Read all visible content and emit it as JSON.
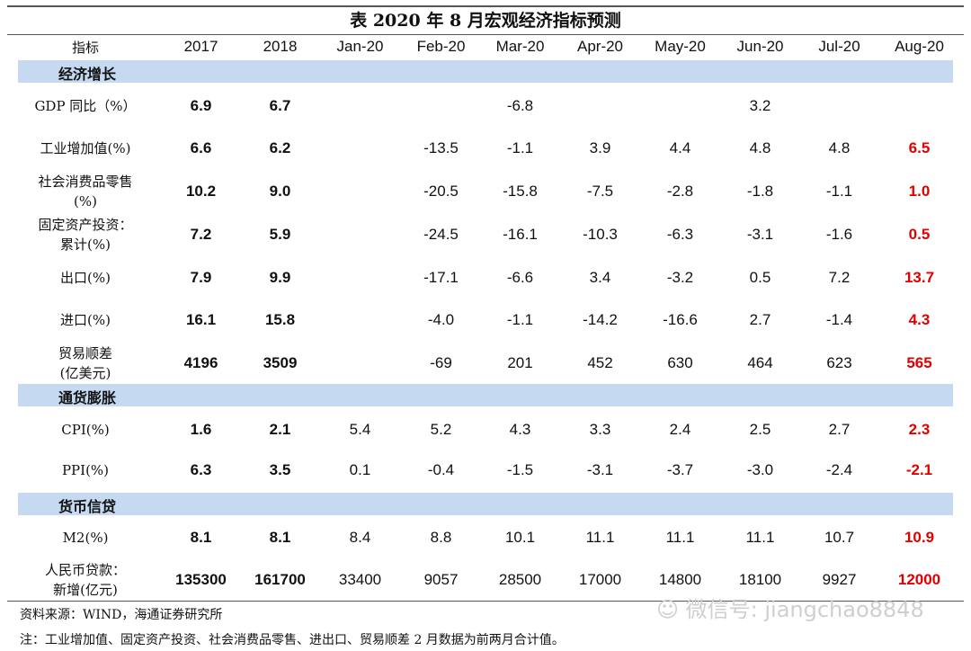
{
  "title": "表 2020 年 8 月宏观经济指标预测",
  "header": [
    "指标",
    "2017",
    "2018",
    "Jan-20",
    "Feb-20",
    "Mar-20",
    "Apr-20",
    "May-20",
    "Jun-20",
    "Jul-20",
    "Aug-20"
  ],
  "sections": [
    {
      "name": "经济增长",
      "rows": [
        {
          "label": "GDP 同比（%）",
          "values": [
            "6.9",
            "6.7",
            "",
            "",
            "-6.8",
            "",
            "",
            "3.2",
            "",
            ""
          ]
        },
        {
          "label": "工业增加值(%)",
          "values": [
            "6.6",
            "6.2",
            "",
            "-13.5",
            "-1.1",
            "3.9",
            "4.4",
            "4.8",
            "4.8",
            "6.5"
          ]
        },
        {
          "label": "社会消费品零售\n(%)",
          "values": [
            "10.2",
            "9.0",
            "",
            "-20.5",
            "-15.8",
            "-7.5",
            "-2.8",
            "-1.8",
            "-1.1",
            "1.0"
          ]
        },
        {
          "label": "固定资产投资：\n累计(%)",
          "values": [
            "7.2",
            "5.9",
            "",
            "-24.5",
            "-16.1",
            "-10.3",
            "-6.3",
            "-3.1",
            "-1.6",
            "0.5"
          ]
        },
        {
          "label": "出口(%)",
          "values": [
            "7.9",
            "9.9",
            "",
            "-17.1",
            "-6.6",
            "3.4",
            "-3.2",
            "0.5",
            "7.2",
            "13.7"
          ]
        },
        {
          "label": "进口(%)",
          "values": [
            "16.1",
            "15.8",
            "",
            "-4.0",
            "-1.1",
            "-14.2",
            "-16.6",
            "2.7",
            "-1.4",
            "4.3"
          ]
        },
        {
          "label": "贸易顺差\n(亿美元)",
          "values": [
            "4196",
            "3509",
            "",
            "-69",
            "201",
            "452",
            "630",
            "464",
            "623",
            "565"
          ]
        }
      ]
    },
    {
      "name": "通货膨胀",
      "rows": [
        {
          "label": "CPI(%)",
          "values": [
            "1.6",
            "2.1",
            "5.4",
            "5.2",
            "4.3",
            "3.3",
            "2.4",
            "2.5",
            "2.7",
            "2.3"
          ]
        },
        {
          "label": "PPI(%)",
          "values": [
            "6.3",
            "3.5",
            "0.1",
            "-0.4",
            "-1.5",
            "-3.1",
            "-3.7",
            "-3.0",
            "-2.4",
            "-2.1"
          ]
        }
      ]
    },
    {
      "name": "货币信贷",
      "rows": [
        {
          "label": "M2(%)",
          "values": [
            "8.1",
            "8.1",
            "8.4",
            "8.8",
            "10.1",
            "11.1",
            "11.1",
            "11.1",
            "10.7",
            "10.9"
          ]
        },
        {
          "label": "人民币贷款：\n新增(亿元)",
          "values": [
            "135300",
            "161700",
            "33400",
            "9057",
            "28500",
            "17000",
            "14800",
            "18100",
            "9927",
            "12000"
          ]
        }
      ]
    }
  ],
  "source": "资料来源：WIND，海通证券研究所",
  "note": "注：工业增加值、固定资产投资、社会消费品零售、进出口、贸易顺差 2 月数据为前两月合计值。",
  "watermark": "微信号: jiangchao8848",
  "colors": {
    "section_bg": "#c5d9f1",
    "forecast": "#e00000"
  }
}
